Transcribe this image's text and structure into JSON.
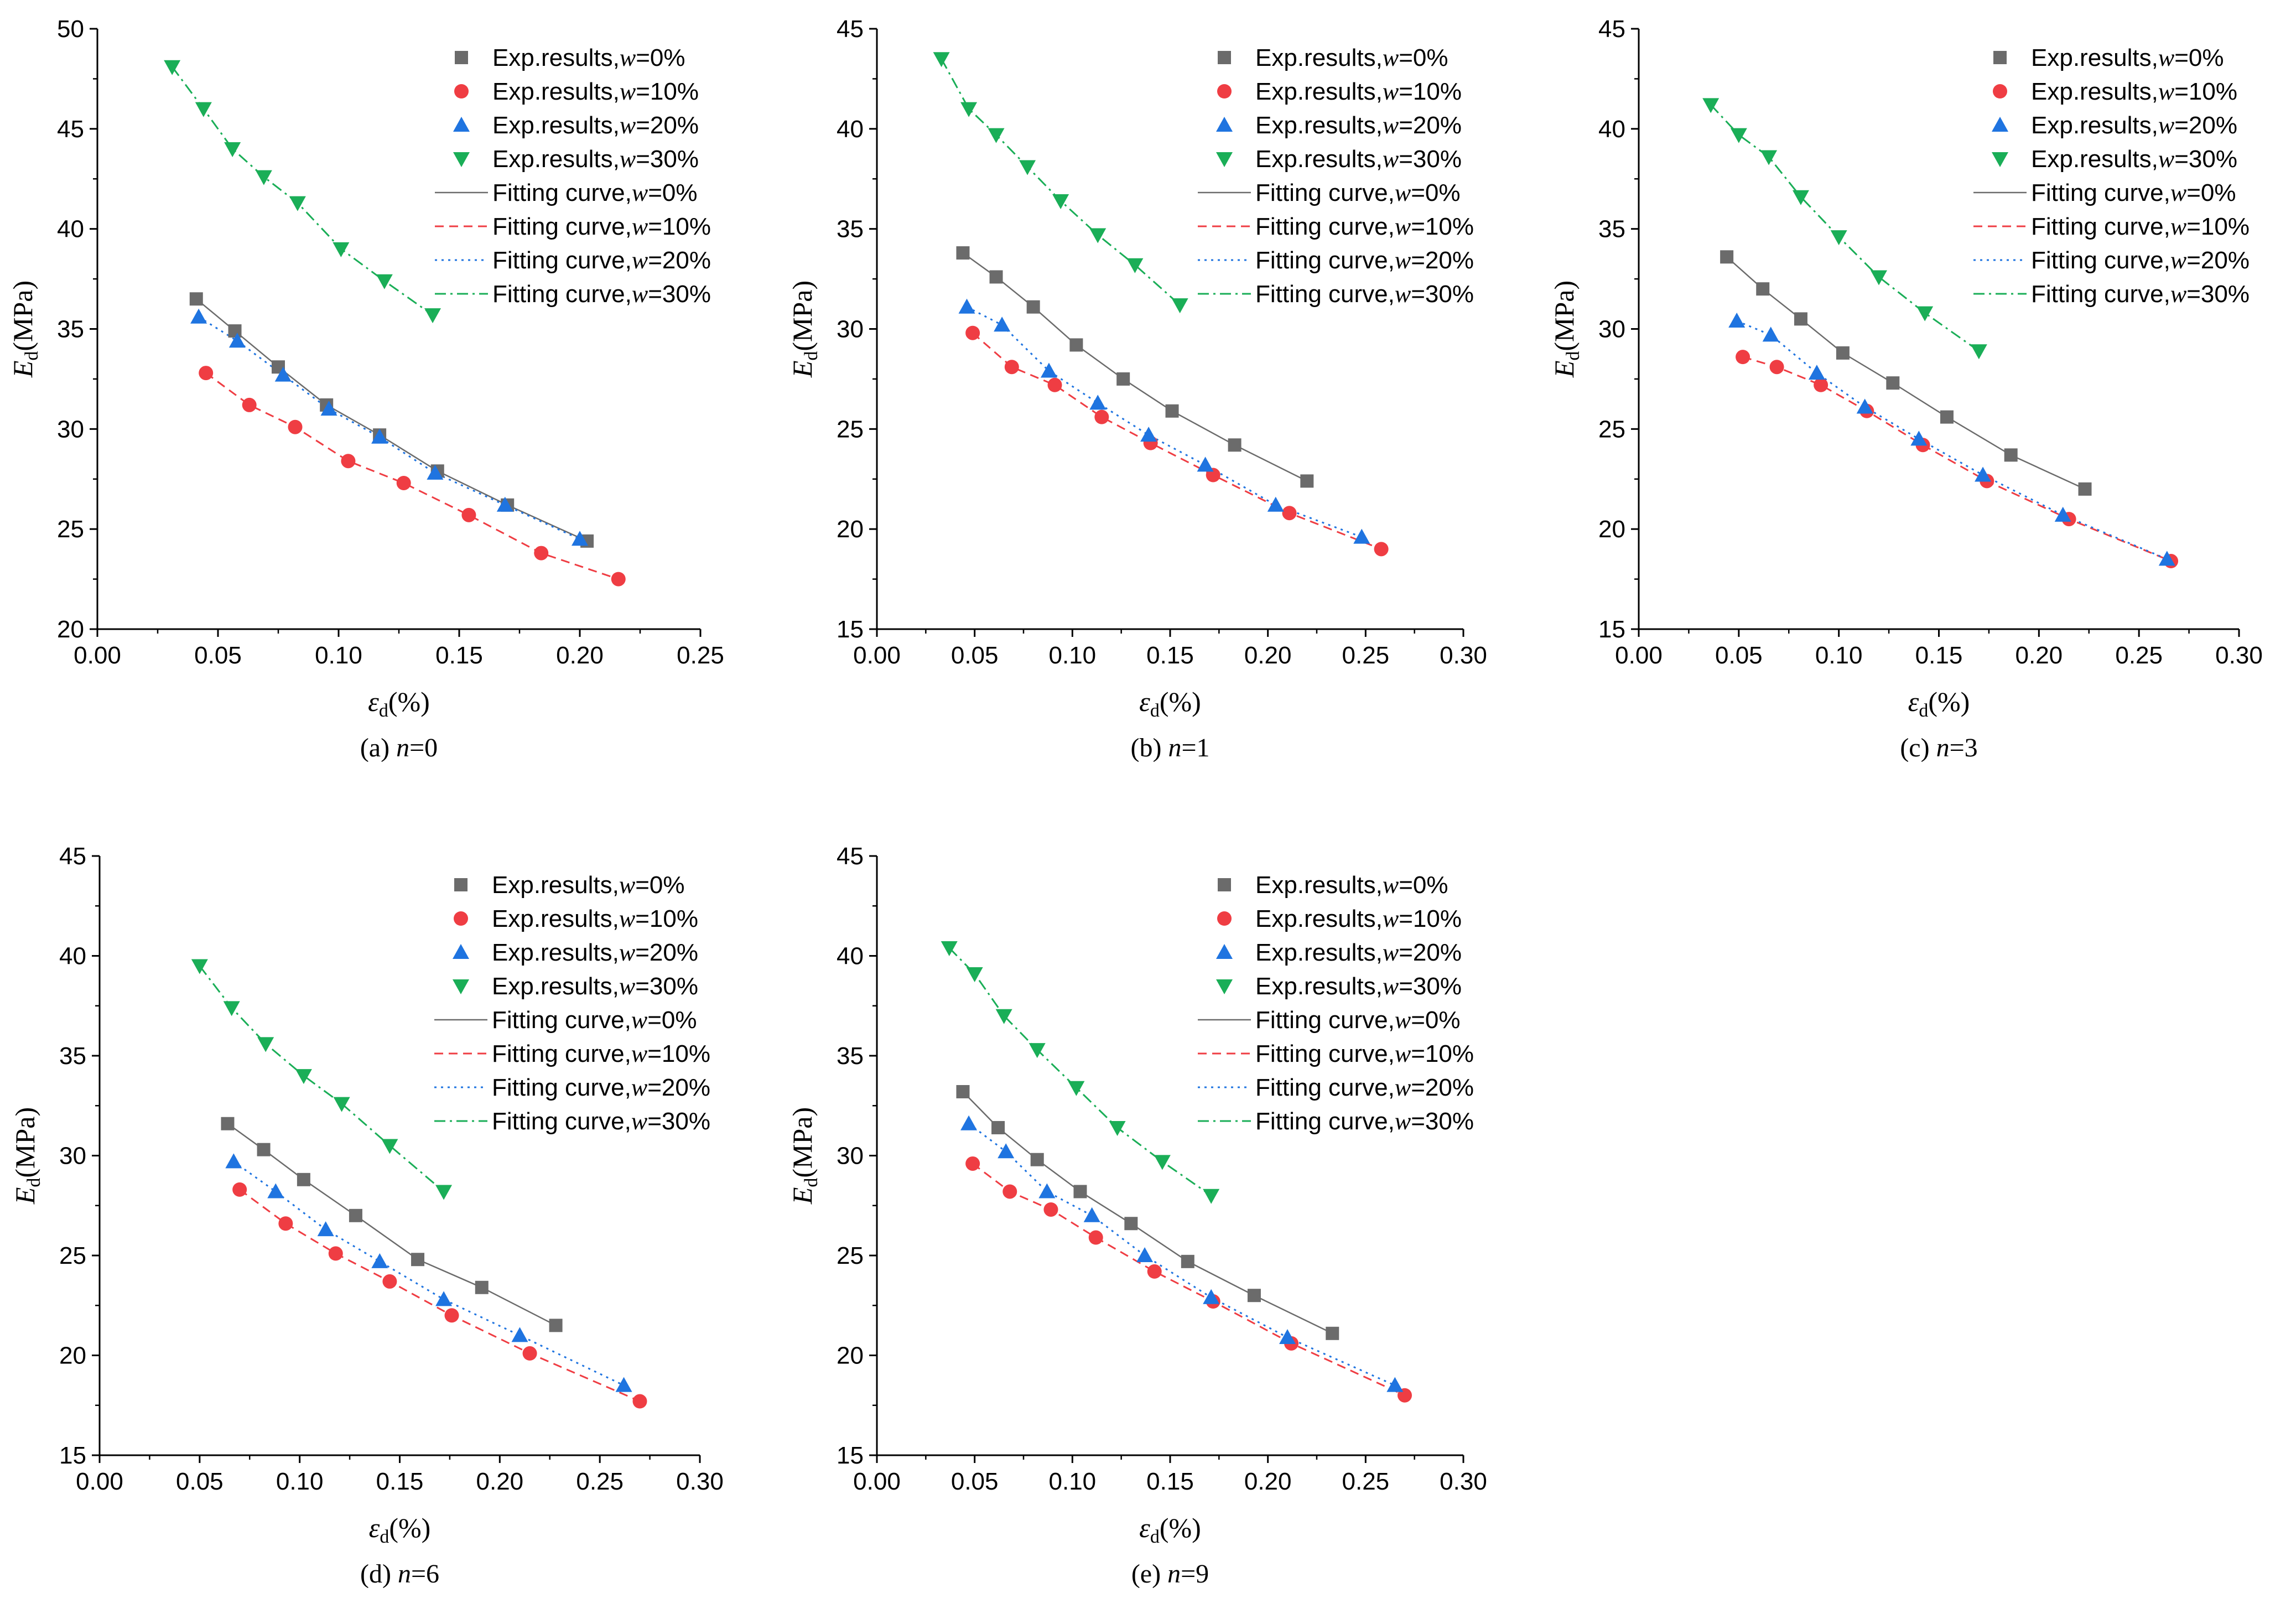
{
  "chart_data": [
    {
      "type": "scatter",
      "caption": {
        "prefix": "(a) ",
        "variable": "n",
        "value": "=0"
      },
      "xlim": [
        0,
        0.25
      ],
      "xticks": [
        "0.00",
        "0.05",
        "0.10",
        "0.15",
        "0.20",
        "0.25"
      ],
      "ylim": [
        20,
        50
      ],
      "yticks": [
        "20",
        "25",
        "30",
        "35",
        "40",
        "45",
        "50"
      ],
      "series": [
        {
          "name": "w=0%",
          "x": [
            0.041,
            0.057,
            0.075,
            0.095,
            0.117,
            0.141,
            0.17,
            0.203
          ],
          "y": [
            36.5,
            34.9,
            33.1,
            31.2,
            29.7,
            27.9,
            26.2,
            24.4
          ]
        },
        {
          "name": "w=10%",
          "x": [
            0.045,
            0.063,
            0.082,
            0.104,
            0.127,
            0.154,
            0.184,
            0.216
          ],
          "y": [
            32.8,
            31.2,
            30.1,
            28.4,
            27.3,
            25.7,
            23.8,
            22.5
          ]
        },
        {
          "name": "w=20%",
          "x": [
            0.042,
            0.058,
            0.077,
            0.096,
            0.117,
            0.14,
            0.169,
            0.2
          ],
          "y": [
            35.6,
            34.4,
            32.7,
            31.0,
            29.6,
            27.8,
            26.2,
            24.5
          ]
        },
        {
          "name": "w=30%",
          "x": [
            0.031,
            0.044,
            0.056,
            0.069,
            0.083,
            0.101,
            0.119,
            0.139
          ],
          "y": [
            48.1,
            46.0,
            44.0,
            42.6,
            41.3,
            39.0,
            37.4,
            35.7
          ]
        }
      ]
    },
    {
      "type": "scatter",
      "caption": {
        "prefix": "(b) ",
        "variable": "n",
        "value": "=1"
      },
      "xlim": [
        0,
        0.3
      ],
      "xticks": [
        "0.00",
        "0.05",
        "0.10",
        "0.15",
        "0.20",
        "0.25",
        "0.30"
      ],
      "ylim": [
        15,
        45
      ],
      "yticks": [
        "15",
        "20",
        "25",
        "30",
        "35",
        "40",
        "45"
      ],
      "series": [
        {
          "name": "w=0%",
          "x": [
            0.044,
            0.061,
            0.08,
            0.102,
            0.126,
            0.151,
            0.183,
            0.22
          ],
          "y": [
            33.8,
            32.6,
            31.1,
            29.2,
            27.5,
            25.9,
            24.2,
            22.4
          ]
        },
        {
          "name": "w=10%",
          "x": [
            0.049,
            0.069,
            0.091,
            0.115,
            0.14,
            0.172,
            0.211,
            0.258
          ],
          "y": [
            29.8,
            28.1,
            27.2,
            25.6,
            24.3,
            22.7,
            20.8,
            19.0
          ]
        },
        {
          "name": "w=20%",
          "x": [
            0.046,
            0.064,
            0.088,
            0.113,
            0.139,
            0.168,
            0.204,
            0.248
          ],
          "y": [
            31.1,
            30.2,
            27.9,
            26.3,
            24.7,
            23.2,
            21.2,
            19.6
          ]
        },
        {
          "name": "w=30%",
          "x": [
            0.033,
            0.047,
            0.061,
            0.077,
            0.094,
            0.113,
            0.132,
            0.155
          ],
          "y": [
            43.5,
            41.0,
            39.7,
            38.1,
            36.4,
            34.7,
            33.2,
            31.2
          ]
        }
      ]
    },
    {
      "type": "scatter",
      "caption": {
        "prefix": "(c) ",
        "variable": "n",
        "value": "=3"
      },
      "xlim": [
        0,
        0.3
      ],
      "xticks": [
        "0.00",
        "0.05",
        "0.10",
        "0.15",
        "0.20",
        "0.25",
        "0.30"
      ],
      "ylim": [
        15,
        45
      ],
      "yticks": [
        "15",
        "20",
        "25",
        "30",
        "35",
        "40",
        "45"
      ],
      "series": [
        {
          "name": "w=0%",
          "x": [
            0.044,
            0.062,
            0.081,
            0.102,
            0.127,
            0.154,
            0.186,
            0.223
          ],
          "y": [
            33.6,
            32.0,
            30.5,
            28.8,
            27.3,
            25.6,
            23.7,
            22.0
          ]
        },
        {
          "name": "w=10%",
          "x": [
            0.052,
            0.069,
            0.091,
            0.114,
            0.142,
            0.174,
            0.215,
            0.266
          ],
          "y": [
            28.6,
            28.1,
            27.2,
            25.9,
            24.2,
            22.4,
            20.5,
            18.4
          ]
        },
        {
          "name": "w=20%",
          "x": [
            0.049,
            0.066,
            0.089,
            0.113,
            0.14,
            0.172,
            0.212,
            0.264
          ],
          "y": [
            30.4,
            29.7,
            27.8,
            26.1,
            24.5,
            22.7,
            20.7,
            18.5
          ]
        },
        {
          "name": "w=30%",
          "x": [
            0.036,
            0.05,
            0.065,
            0.081,
            0.1,
            0.12,
            0.143,
            0.17
          ],
          "y": [
            41.2,
            39.7,
            38.6,
            36.6,
            34.6,
            32.6,
            30.8,
            28.9
          ]
        }
      ]
    },
    {
      "type": "scatter",
      "caption": {
        "prefix": "(d) ",
        "variable": "n",
        "value": "=6"
      },
      "xlim": [
        0,
        0.3
      ],
      "xticks": [
        "0.00",
        "0.05",
        "0.10",
        "0.15",
        "0.20",
        "0.25",
        "0.30"
      ],
      "ylim": [
        15,
        45
      ],
      "yticks": [
        "15",
        "20",
        "25",
        "30",
        "35",
        "40",
        "45"
      ],
      "series": [
        {
          "name": "w=0%",
          "x": [
            0.064,
            0.082,
            0.102,
            0.128,
            0.159,
            0.191,
            0.228
          ],
          "y": [
            31.6,
            30.3,
            28.8,
            27.0,
            24.8,
            23.4,
            21.5
          ]
        },
        {
          "name": "w=10%",
          "x": [
            0.07,
            0.093,
            0.118,
            0.145,
            0.176,
            0.215,
            0.27
          ],
          "y": [
            28.3,
            26.6,
            25.1,
            23.7,
            22.0,
            20.1,
            17.7
          ]
        },
        {
          "name": "w=20%",
          "x": [
            0.067,
            0.088,
            0.113,
            0.14,
            0.172,
            0.21,
            0.262
          ],
          "y": [
            29.7,
            28.2,
            26.3,
            24.7,
            22.8,
            21.0,
            18.5
          ]
        },
        {
          "name": "w=30%",
          "x": [
            0.05,
            0.066,
            0.083,
            0.102,
            0.121,
            0.145,
            0.172
          ],
          "y": [
            39.5,
            37.4,
            35.6,
            34.0,
            32.6,
            30.5,
            28.2
          ]
        }
      ]
    },
    {
      "type": "scatter",
      "caption": {
        "prefix": "(e) ",
        "variable": "n",
        "value": "=9"
      },
      "xlim": [
        0,
        0.3
      ],
      "xticks": [
        "0.00",
        "0.05",
        "0.10",
        "0.15",
        "0.20",
        "0.25",
        "0.30"
      ],
      "ylim": [
        15,
        45
      ],
      "yticks": [
        "15",
        "20",
        "25",
        "30",
        "35",
        "40",
        "45"
      ],
      "series": [
        {
          "name": "w=0%",
          "x": [
            0.044,
            0.062,
            0.082,
            0.104,
            0.13,
            0.159,
            0.193,
            0.233
          ],
          "y": [
            33.2,
            31.4,
            29.8,
            28.2,
            26.6,
            24.7,
            23.0,
            21.1
          ]
        },
        {
          "name": "w=10%",
          "x": [
            0.049,
            0.068,
            0.089,
            0.112,
            0.142,
            0.172,
            0.212,
            0.27
          ],
          "y": [
            29.6,
            28.2,
            27.3,
            25.9,
            24.2,
            22.7,
            20.6,
            18.0
          ]
        },
        {
          "name": "w=20%",
          "x": [
            0.047,
            0.066,
            0.087,
            0.11,
            0.137,
            0.171,
            0.21,
            0.265
          ],
          "y": [
            31.6,
            30.2,
            28.2,
            27.0,
            25.0,
            22.9,
            20.9,
            18.5
          ]
        },
        {
          "name": "w=30%",
          "x": [
            0.037,
            0.05,
            0.065,
            0.082,
            0.102,
            0.123,
            0.146,
            0.171
          ],
          "y": [
            40.4,
            39.1,
            37.0,
            35.3,
            33.4,
            31.4,
            29.7,
            28.0
          ]
        }
      ]
    }
  ],
  "axes": {
    "x_title": {
      "symbol": "ε",
      "sub": "d",
      "unit": "(%)"
    },
    "y_title": {
      "symbol": "E",
      "sub": "d",
      "unit": "(MPa)"
    }
  },
  "legend": {
    "exp_prefix": "Exp.results,",
    "fit_prefix": "Fitting curve,",
    "variable": "w",
    "values": [
      "=0%",
      "=10%",
      "=20%",
      "=30%"
    ]
  },
  "colors": {
    "w0": "#6b6b6b",
    "w10": "#ef3d43",
    "w20": "#1f74e0",
    "w30": "#1aae57",
    "axis": "#000000"
  }
}
